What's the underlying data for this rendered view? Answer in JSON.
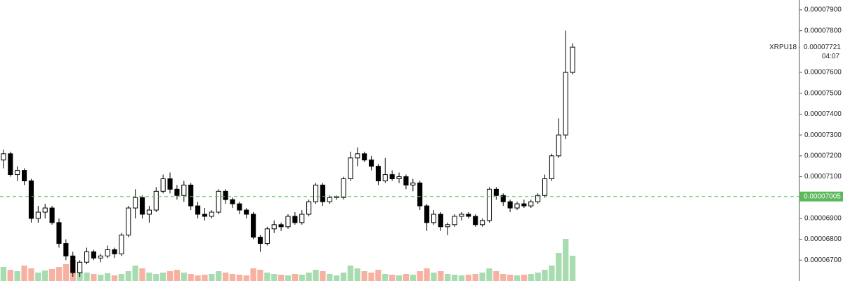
{
  "chart_data": {
    "type": "candlestick",
    "symbol": "XRPU18",
    "countdown": "04:07",
    "up_color": "#ffffff",
    "down_color": "#000000",
    "volume_up_color": "#a8dcb0",
    "volume_down_color": "#f6b1a2",
    "open": [
      7.18e-05,
      7.21e-05,
      7.11e-05,
      7.13e-05,
      7.08e-05,
      6.9e-05,
      6.93e-05,
      6.95e-05,
      6.88e-05,
      6.78e-05,
      6.72e-05,
      6.64e-05,
      6.69e-05,
      6.74e-05,
      6.71e-05,
      6.72e-05,
      6.75e-05,
      6.73e-05,
      6.82e-05,
      6.95e-05,
      7e-05,
      6.92e-05,
      6.94e-05,
      7.03e-05,
      7.09e-05,
      7.04e-05,
      7.01e-05,
      7.06e-05,
      6.96e-05,
      6.92e-05,
      6.91e-05,
      6.93e-05,
      7.03e-05,
      6.99e-05,
      6.97e-05,
      6.94e-05,
      6.92e-05,
      6.81e-05,
      6.78e-05,
      6.85e-05,
      6.87e-05,
      6.86e-05,
      6.91e-05,
      6.88e-05,
      6.92e-05,
      6.98e-05,
      7.06e-05,
      6.98e-05,
      7e-05,
      7e-05,
      7.09e-05,
      7.19e-05,
      7.21e-05,
      7.18e-05,
      7.15e-05,
      7.08e-05,
      7.11e-05,
      7.09e-05,
      7.1e-05,
      7.06e-05,
      7.07e-05,
      6.96e-05,
      6.88e-05,
      6.92e-05,
      6.86e-05,
      6.87e-05,
      6.91e-05,
      6.92e-05,
      6.91e-05,
      6.87e-05,
      6.89e-05,
      7.04e-05,
      7.01e-05,
      6.98e-05,
      6.95e-05,
      6.97e-05,
      6.96e-05,
      6.98e-05,
      7.01e-05,
      7.09e-05,
      7.2e-05,
      7.3e-05,
      7.6e-05
    ],
    "high": [
      7.23e-05,
      7.22e-05,
      7.15e-05,
      7.14e-05,
      7.09e-05,
      6.96e-05,
      6.97e-05,
      6.96e-05,
      6.9e-05,
      6.8e-05,
      6.74e-05,
      6.7e-05,
      6.76e-05,
      6.75e-05,
      6.73e-05,
      6.77e-05,
      6.76e-05,
      6.83e-05,
      6.96e-05,
      7.04e-05,
      7.01e-05,
      6.96e-05,
      7.05e-05,
      7.11e-05,
      7.12e-05,
      7.06e-05,
      7.08e-05,
      7.07e-05,
      6.98e-05,
      6.95e-05,
      6.94e-05,
      7.04e-05,
      7.04e-05,
      7e-05,
      6.98e-05,
      6.95e-05,
      6.93e-05,
      6.82e-05,
      6.86e-05,
      6.89e-05,
      6.88e-05,
      6.92e-05,
      6.93e-05,
      6.94e-05,
      6.99e-05,
      7.07e-05,
      7.07e-05,
      7.01e-05,
      7.01e-05,
      7.1e-05,
      7.22e-05,
      7.24e-05,
      7.22e-05,
      7.2e-05,
      7.16e-05,
      7.19e-05,
      7.13e-05,
      7.12e-05,
      7.11e-05,
      7.09e-05,
      7.08e-05,
      6.97e-05,
      6.94e-05,
      6.93e-05,
      6.88e-05,
      6.92e-05,
      6.93e-05,
      6.93e-05,
      6.92e-05,
      6.9e-05,
      7.05e-05,
      7.05e-05,
      7.02e-05,
      6.99e-05,
      6.98e-05,
      6.99e-05,
      6.99e-05,
      7.02e-05,
      7.11e-05,
      7.21e-05,
      7.38e-05,
      7.8e-05,
      7.74e-05
    ],
    "low": [
      7.14e-05,
      7.1e-05,
      7.08e-05,
      7.06e-05,
      6.88e-05,
      6.88e-05,
      6.9e-05,
      6.87e-05,
      6.76e-05,
      6.7e-05,
      6.62e-05,
      6.62e-05,
      6.68e-05,
      6.7e-05,
      6.69e-05,
      6.71e-05,
      6.71e-05,
      6.72e-05,
      6.81e-05,
      6.9e-05,
      6.9e-05,
      6.88e-05,
      6.93e-05,
      7.02e-05,
      7.02e-05,
      6.99e-05,
      6.98e-05,
      6.94e-05,
      6.9e-05,
      6.89e-05,
      6.9e-05,
      6.92e-05,
      6.97e-05,
      6.95e-05,
      6.92e-05,
      6.9e-05,
      6.8e-05,
      6.74e-05,
      6.77e-05,
      6.83e-05,
      6.84e-05,
      6.85e-05,
      6.87e-05,
      6.87e-05,
      6.91e-05,
      6.97e-05,
      6.96e-05,
      6.97e-05,
      6.99e-05,
      6.99e-05,
      7.08e-05,
      7.15e-05,
      7.17e-05,
      7.13e-05,
      7.06e-05,
      7.07e-05,
      7.08e-05,
      7.07e-05,
      7.04e-05,
      7.03e-05,
      6.94e-05,
      6.84e-05,
      6.87e-05,
      6.84e-05,
      6.82e-05,
      6.86e-05,
      6.89e-05,
      6.9e-05,
      6.86e-05,
      6.86e-05,
      6.88e-05,
      6.99e-05,
      6.96e-05,
      6.93e-05,
      6.94e-05,
      6.95e-05,
      6.95e-05,
      6.97e-05,
      7e-05,
      7.08e-05,
      7.19e-05,
      7.28e-05,
      7.59e-05
    ],
    "close": [
      7.21e-05,
      7.11e-05,
      7.13e-05,
      7.08e-05,
      6.9e-05,
      6.93e-05,
      6.95e-05,
      6.88e-05,
      6.78e-05,
      6.72e-05,
      6.64e-05,
      6.69e-05,
      6.74e-05,
      6.71e-05,
      6.72e-05,
      6.75e-05,
      6.73e-05,
      6.82e-05,
      6.95e-05,
      7e-05,
      6.92e-05,
      6.94e-05,
      7.03e-05,
      7.09e-05,
      7.04e-05,
      7.01e-05,
      7.06e-05,
      6.96e-05,
      6.92e-05,
      6.91e-05,
      6.93e-05,
      7.03e-05,
      6.99e-05,
      6.97e-05,
      6.94e-05,
      6.92e-05,
      6.81e-05,
      6.78e-05,
      6.85e-05,
      6.87e-05,
      6.86e-05,
      6.91e-05,
      6.88e-05,
      6.92e-05,
      6.98e-05,
      7.06e-05,
      6.98e-05,
      7e-05,
      7.005e-05,
      7.09e-05,
      7.19e-05,
      7.21e-05,
      7.18e-05,
      7.15e-05,
      7.08e-05,
      7.11e-05,
      7.09e-05,
      7.1e-05,
      7.06e-05,
      7.07e-05,
      6.96e-05,
      6.88e-05,
      6.92e-05,
      6.86e-05,
      6.87e-05,
      6.91e-05,
      6.92e-05,
      6.91e-05,
      6.87e-05,
      6.89e-05,
      7.04e-05,
      7.01e-05,
      6.98e-05,
      6.95e-05,
      6.97e-05,
      6.96e-05,
      6.98e-05,
      7.01e-05,
      7.09e-05,
      7.2e-05,
      7.3e-05,
      7.6e-05,
      7.721e-05
    ],
    "volume": [
      20,
      16,
      14,
      22,
      18,
      12,
      15,
      17,
      20,
      24,
      30,
      14,
      12,
      10,
      9,
      11,
      8,
      10,
      14,
      22,
      18,
      12,
      10,
      12,
      14,
      16,
      12,
      10,
      8,
      9,
      10,
      14,
      12,
      10,
      9,
      8,
      18,
      16,
      12,
      10,
      9,
      8,
      10,
      9,
      12,
      16,
      14,
      10,
      8,
      12,
      22,
      18,
      14,
      12,
      16,
      10,
      9,
      8,
      10,
      9,
      14,
      18,
      12,
      14,
      10,
      9,
      8,
      9,
      10,
      12,
      18,
      14,
      10,
      9,
      8,
      9,
      10,
      12,
      16,
      22,
      40,
      60,
      36
    ],
    "ylim": [
      6.6e-05,
      7.947e-05
    ],
    "yticks": [
      {
        "value": 7.9e-05,
        "label": "0.00007900"
      },
      {
        "value": 7.8e-05,
        "label": "0.00007800"
      },
      {
        "value": 7.6e-05,
        "label": "0.00007600"
      },
      {
        "value": 7.5e-05,
        "label": "0.00007500"
      },
      {
        "value": 7.4e-05,
        "label": "0.00007400"
      },
      {
        "value": 7.3e-05,
        "label": "0.00007300"
      },
      {
        "value": 7.2e-05,
        "label": "0.00007200"
      },
      {
        "value": 7.1e-05,
        "label": "0.00007100"
      },
      {
        "value": 6.9e-05,
        "label": "0.00006900"
      },
      {
        "value": 6.8e-05,
        "label": "0.00006800"
      },
      {
        "value": 6.7e-05,
        "label": "0.00006700"
      }
    ],
    "last_price": {
      "value": 7.721e-05,
      "label": "0.00007721"
    },
    "reference_line": {
      "value": 7.005e-05,
      "label": "0.00007005",
      "color": "#5cb85c"
    }
  }
}
